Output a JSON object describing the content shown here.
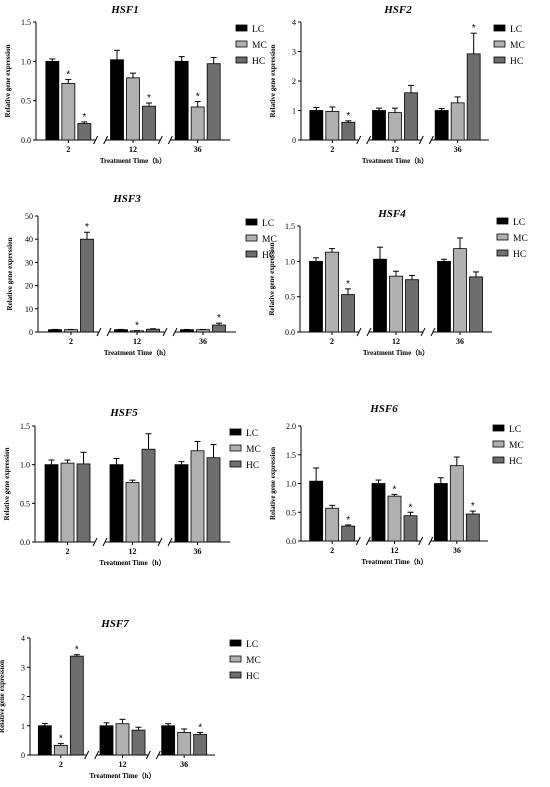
{
  "legend": [
    "LC",
    "MC",
    "HC"
  ],
  "colors": {
    "LC": "#000000",
    "MC": "#b0b0b0",
    "HC": "#6e6e6e"
  },
  "chart_data": [
    {
      "type": "bar",
      "title": "HSF1",
      "categories": [
        "2",
        "12",
        "36"
      ],
      "xlabel": "Treatment Time（h）",
      "ylabel": "Relative gene expression",
      "ylim": [
        0,
        1.5
      ],
      "yticks": [
        "0.0",
        "0.5",
        "1.0",
        "1.5"
      ],
      "series": [
        {
          "name": "LC",
          "values": [
            1.0,
            1.02,
            1.0
          ],
          "errors": [
            0.03,
            0.12,
            0.06
          ],
          "sig": [
            false,
            false,
            false
          ]
        },
        {
          "name": "MC",
          "values": [
            0.72,
            0.79,
            0.42
          ],
          "errors": [
            0.05,
            0.06,
            0.07
          ],
          "sig": [
            true,
            false,
            true
          ]
        },
        {
          "name": "HC",
          "values": [
            0.21,
            0.43,
            0.97
          ],
          "errors": [
            0.02,
            0.04,
            0.08
          ],
          "sig": [
            true,
            true,
            false
          ]
        }
      ]
    },
    {
      "type": "bar",
      "title": "HSF2",
      "categories": [
        "2",
        "12",
        "36"
      ],
      "xlabel": "Treatment Time（h）",
      "ylabel": "Relative gene expression",
      "ylim": [
        0,
        4
      ],
      "yticks": [
        "0",
        "1",
        "2",
        "3",
        "4"
      ],
      "series": [
        {
          "name": "LC",
          "values": [
            1.0,
            1.0,
            1.0
          ],
          "errors": [
            0.1,
            0.08,
            0.07
          ],
          "sig": [
            false,
            false,
            false
          ]
        },
        {
          "name": "MC",
          "values": [
            0.97,
            0.93,
            1.26
          ],
          "errors": [
            0.15,
            0.15,
            0.2
          ],
          "sig": [
            false,
            false,
            false
          ]
        },
        {
          "name": "HC",
          "values": [
            0.6,
            1.6,
            2.92
          ],
          "errors": [
            0.05,
            0.25,
            0.7
          ],
          "sig": [
            true,
            false,
            true
          ]
        }
      ]
    },
    {
      "type": "bar",
      "title": "HSF3",
      "categories": [
        "2",
        "12",
        "36"
      ],
      "xlabel": "Treatment Time（h）",
      "ylabel": "Relative gene expression",
      "ylim": [
        0,
        50
      ],
      "yticks": [
        "0",
        "10",
        "20",
        "30",
        "40",
        "50"
      ],
      "series": [
        {
          "name": "LC",
          "values": [
            1.0,
            1.0,
            1.0
          ],
          "errors": [
            0.1,
            0.1,
            0.1
          ],
          "sig": [
            false,
            false,
            false
          ]
        },
        {
          "name": "MC",
          "values": [
            1.0,
            0.5,
            1.0
          ],
          "errors": [
            0.1,
            0.1,
            0.1
          ],
          "sig": [
            false,
            true,
            false
          ]
        },
        {
          "name": "HC",
          "values": [
            40.0,
            1.2,
            3.0
          ],
          "errors": [
            3.0,
            0.2,
            0.8
          ],
          "sig": [
            true,
            false,
            true
          ]
        }
      ]
    },
    {
      "type": "bar",
      "title": "HSF4",
      "categories": [
        "2",
        "12",
        "36"
      ],
      "xlabel": "Treatment Time（h）",
      "ylabel": "Relative gene expression",
      "ylim": [
        0,
        1.5
      ],
      "yticks": [
        "0.0",
        "0.5",
        "1.0",
        "1.5"
      ],
      "series": [
        {
          "name": "LC",
          "values": [
            1.0,
            1.03,
            1.0
          ],
          "errors": [
            0.05,
            0.17,
            0.03
          ],
          "sig": [
            false,
            false,
            false
          ]
        },
        {
          "name": "MC",
          "values": [
            1.13,
            0.79,
            1.18
          ],
          "errors": [
            0.05,
            0.07,
            0.15
          ],
          "sig": [
            false,
            false,
            false
          ]
        },
        {
          "name": "HC",
          "values": [
            0.53,
            0.74,
            0.78
          ],
          "errors": [
            0.08,
            0.06,
            0.07
          ],
          "sig": [
            true,
            false,
            false
          ]
        }
      ]
    },
    {
      "type": "bar",
      "title": "HSF5",
      "categories": [
        "2",
        "12",
        "36"
      ],
      "xlabel": "Treatment Time（h）",
      "ylabel": "Relative gene expression",
      "ylim": [
        0,
        1.5
      ],
      "yticks": [
        "0.0",
        "0.5",
        "1.0",
        "1.5"
      ],
      "series": [
        {
          "name": "LC",
          "values": [
            1.0,
            1.0,
            1.0
          ],
          "errors": [
            0.06,
            0.08,
            0.04
          ],
          "sig": [
            false,
            false,
            false
          ]
        },
        {
          "name": "MC",
          "values": [
            1.02,
            0.77,
            1.18
          ],
          "errors": [
            0.04,
            0.03,
            0.12
          ],
          "sig": [
            false,
            false,
            false
          ]
        },
        {
          "name": "HC",
          "values": [
            1.01,
            1.2,
            1.09
          ],
          "errors": [
            0.15,
            0.2,
            0.17
          ],
          "sig": [
            false,
            false,
            false
          ]
        }
      ]
    },
    {
      "type": "bar",
      "title": "HSF6",
      "categories": [
        "2",
        "12",
        "36"
      ],
      "xlabel": "Treatment Time（h）",
      "ylabel": "Relative gene expression",
      "ylim": [
        0,
        2.0
      ],
      "yticks": [
        "0.0",
        "0.5",
        "1.0",
        "1.5",
        "2.0"
      ],
      "series": [
        {
          "name": "LC",
          "values": [
            1.04,
            1.0,
            1.0
          ],
          "errors": [
            0.23,
            0.06,
            0.1
          ],
          "sig": [
            false,
            false,
            false
          ]
        },
        {
          "name": "MC",
          "values": [
            0.57,
            0.78,
            1.31
          ],
          "errors": [
            0.05,
            0.03,
            0.15
          ],
          "sig": [
            false,
            true,
            false
          ]
        },
        {
          "name": "HC",
          "values": [
            0.26,
            0.44,
            0.47
          ],
          "errors": [
            0.02,
            0.06,
            0.05
          ],
          "sig": [
            true,
            true,
            true
          ]
        }
      ]
    },
    {
      "type": "bar",
      "title": "HSF7",
      "categories": [
        "2",
        "12",
        "36"
      ],
      "xlabel": "Treatment Time（h）",
      "ylabel": "Relative gene expression",
      "ylim": [
        0,
        4
      ],
      "yticks": [
        "0",
        "1",
        "2",
        "3",
        "4"
      ],
      "series": [
        {
          "name": "LC",
          "values": [
            1.0,
            1.0,
            1.0
          ],
          "errors": [
            0.08,
            0.1,
            0.07
          ],
          "sig": [
            false,
            false,
            false
          ]
        },
        {
          "name": "MC",
          "values": [
            0.33,
            1.07,
            0.77
          ],
          "errors": [
            0.06,
            0.15,
            0.12
          ],
          "sig": [
            true,
            false,
            false
          ]
        },
        {
          "name": "HC",
          "values": [
            3.38,
            0.85,
            0.7
          ],
          "errors": [
            0.05,
            0.1,
            0.07
          ],
          "sig": [
            true,
            false,
            true
          ]
        }
      ]
    }
  ]
}
